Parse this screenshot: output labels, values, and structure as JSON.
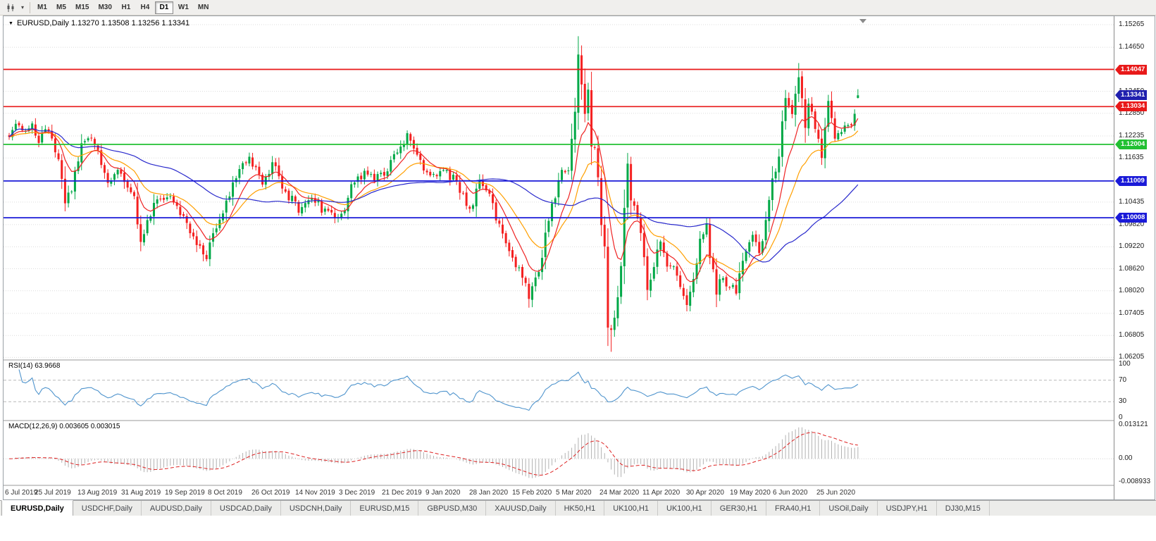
{
  "toolbar": {
    "timeframes": [
      {
        "label": "M1",
        "active": false
      },
      {
        "label": "M5",
        "active": false
      },
      {
        "label": "M15",
        "active": false
      },
      {
        "label": "M30",
        "active": false
      },
      {
        "label": "H1",
        "active": false
      },
      {
        "label": "H4",
        "active": false
      },
      {
        "label": "D1",
        "active": true
      },
      {
        "label": "W1",
        "active": false
      },
      {
        "label": "MN",
        "active": false
      }
    ]
  },
  "chart": {
    "header": "EURUSD,Daily 1.13270 1.13508 1.13256 1.13341",
    "rsi_label": "RSI(14) 63.9668",
    "macd_label": "MACD(12,26,9) 0.003605 0.003015"
  },
  "chart_data": {
    "type": "candlestick",
    "symbol": "EURUSD",
    "timeframe": "Daily",
    "ohlc": {
      "open": 1.1327,
      "high": 1.13508,
      "low": 1.13256,
      "close": 1.13341
    },
    "bars": 259,
    "price_ticks": [
      {
        "label": "1.15265",
        "p": 1.15265
      },
      {
        "label": "1.14650",
        "p": 1.1465
      },
      {
        "label": "1.13450",
        "p": 1.1345
      },
      {
        "label": "1.12850",
        "p": 1.1285
      },
      {
        "label": "1.12235",
        "p": 1.12235
      },
      {
        "label": "1.11635",
        "p": 1.11635
      },
      {
        "label": "1.10435",
        "p": 1.10435
      },
      {
        "label": "1.09820",
        "p": 1.0982
      },
      {
        "label": "1.09220",
        "p": 1.0922
      },
      {
        "label": "1.08620",
        "p": 1.0862
      },
      {
        "label": "1.08020",
        "p": 1.0802
      },
      {
        "label": "1.07405",
        "p": 1.07405
      },
      {
        "label": "1.06805",
        "p": 1.06805
      },
      {
        "label": "1.06205",
        "p": 1.06205
      }
    ],
    "hlines": [
      {
        "price": 1.14047,
        "label": "1.14047",
        "color": "#e81919"
      },
      {
        "price": 1.13034,
        "label": "1.13034",
        "color": "#e81919"
      },
      {
        "price": 1.12004,
        "label": "1.12004",
        "color": "#22c032"
      },
      {
        "price": 1.11009,
        "label": "1.11009",
        "color": "#1a1ad8"
      },
      {
        "price": 1.10008,
        "label": "1.10008",
        "color": "#1a1ad8"
      }
    ],
    "current_price": {
      "label": "1.13341",
      "value": 1.13341,
      "bg": "#1f1fae"
    },
    "x_labels": [
      "6 Jul 2019",
      "25 Jul 2019",
      "13 Aug 2019",
      "31 Aug 2019",
      "19 Sep 2019",
      "8 Oct 2019",
      "26 Oct 2019",
      "14 Nov 2019",
      "3 Dec 2019",
      "21 Dec 2019",
      "9 Jan 2020",
      "28 Jan 2020",
      "15 Feb 2020",
      "5 Mar 2020",
      "24 Mar 2020",
      "11 Apr 2020",
      "30 Apr 2020",
      "19 May 2020",
      "6 Jun 2020",
      "25 Jun 2020"
    ],
    "rsi": {
      "period": 14,
      "value": 63.9668,
      "axis": [
        {
          "label": "100",
          "v": 100
        },
        {
          "label": "70",
          "v": 70
        },
        {
          "label": "30",
          "v": 30
        },
        {
          "label": "0",
          "v": 0
        }
      ]
    },
    "macd": {
      "fast": 12,
      "slow": 26,
      "signal": 9,
      "value": 0.003605,
      "signal_value": 0.003015,
      "axis": [
        {
          "label": "0.013121",
          "v": 0.013121
        },
        {
          "label": "0.00",
          "v": 0
        },
        {
          "label": "-0.008933",
          "v": -0.008933
        }
      ]
    },
    "moving_averages": [
      {
        "type": "ema",
        "period": 21,
        "color": "#ff9f00"
      },
      {
        "type": "ema",
        "period": 9,
        "color": "#ee2222"
      },
      {
        "type": "sma",
        "period": 50,
        "color": "#2929cc"
      }
    ],
    "colors": {
      "bull": "#00a847",
      "bear": "#f42020",
      "rsi_line": "#4f94cd",
      "macd_hist": "#b2b2b2",
      "macd_signal": "#dd2222",
      "grid": "#dcdcdc"
    },
    "close_anchors": [
      [
        0,
        1.1235
      ],
      [
        2,
        1.1268
      ],
      [
        4,
        1.1228
      ],
      [
        6,
        1.1258
      ],
      [
        9,
        1.1215
      ],
      [
        12,
        1.1235
      ],
      [
        15,
        1.115
      ],
      [
        17,
        1.104
      ],
      [
        19,
        1.1085
      ],
      [
        22,
        1.12
      ],
      [
        26,
        1.121
      ],
      [
        30,
        1.1095
      ],
      [
        33,
        1.114
      ],
      [
        36,
        1.1085
      ],
      [
        38,
        1.106
      ],
      [
        40,
        1.093
      ],
      [
        44,
        1.1035
      ],
      [
        48,
        1.107
      ],
      [
        52,
        1.1015
      ],
      [
        56,
        1.0955
      ],
      [
        60,
        1.0895
      ],
      [
        63,
        1.0985
      ],
      [
        66,
        1.1035
      ],
      [
        70,
        1.114
      ],
      [
        73,
        1.116
      ],
      [
        77,
        1.109
      ],
      [
        80,
        1.115
      ],
      [
        84,
        1.1075
      ],
      [
        88,
        1.102
      ],
      [
        92,
        1.1065
      ],
      [
        96,
        1.1015
      ],
      [
        100,
        1.099
      ],
      [
        104,
        1.108
      ],
      [
        108,
        1.1125
      ],
      [
        112,
        1.111
      ],
      [
        115,
        1.113
      ],
      [
        118,
        1.118
      ],
      [
        121,
        1.122
      ],
      [
        124,
        1.1165
      ],
      [
        128,
        1.1115
      ],
      [
        132,
        1.1135
      ],
      [
        136,
        1.1095
      ],
      [
        140,
        1.1025
      ],
      [
        143,
        1.109
      ],
      [
        146,
        1.1055
      ],
      [
        150,
        1.095
      ],
      [
        154,
        1.0875
      ],
      [
        158,
        1.079
      ],
      [
        161,
        1.0855
      ],
      [
        164,
        1.1
      ],
      [
        166,
        1.1055
      ],
      [
        168,
        1.1135
      ],
      [
        170,
        1.114
      ],
      [
        172,
        1.129
      ],
      [
        173,
        1.145
      ],
      [
        174,
        1.136
      ],
      [
        175,
        1.128
      ],
      [
        176,
        1.134
      ],
      [
        177,
        1.1185
      ],
      [
        178,
        1.118
      ],
      [
        179,
        1.11
      ],
      [
        180,
        1.0995
      ],
      [
        181,
        1.0915
      ],
      [
        182,
        1.07
      ],
      [
        183,
        1.069
      ],
      [
        184,
        1.0727
      ],
      [
        185,
        1.0786
      ],
      [
        186,
        1.088
      ],
      [
        187,
        1.103
      ],
      [
        188,
        1.114
      ],
      [
        189,
        1.105
      ],
      [
        190,
        1.103
      ],
      [
        192,
        1.096
      ],
      [
        194,
        1.08
      ],
      [
        196,
        1.087
      ],
      [
        198,
        1.0935
      ],
      [
        200,
        1.087
      ],
      [
        202,
        1.0875
      ],
      [
        204,
        1.082
      ],
      [
        206,
        1.0775
      ],
      [
        208,
        1.083
      ],
      [
        210,
        1.095
      ],
      [
        212,
        1.098
      ],
      [
        213,
        1.0905
      ],
      [
        215,
        1.08
      ],
      [
        217,
        1.084
      ],
      [
        219,
        1.0815
      ],
      [
        221,
        1.08
      ],
      [
        224,
        1.0915
      ],
      [
        226,
        1.095
      ],
      [
        228,
        1.09
      ],
      [
        230,
        1.1
      ],
      [
        232,
        1.11
      ],
      [
        234,
        1.117
      ],
      [
        236,
        1.1337
      ],
      [
        238,
        1.1294
      ],
      [
        240,
        1.1373
      ],
      [
        242,
        1.1256
      ],
      [
        243,
        1.1323
      ],
      [
        245,
        1.1244
      ],
      [
        247,
        1.1177
      ],
      [
        249,
        1.1308
      ],
      [
        251,
        1.1218
      ],
      [
        253,
        1.1242
      ],
      [
        255,
        1.1251
      ],
      [
        257,
        1.128
      ],
      [
        258,
        1.1334
      ]
    ],
    "candle_overrides": [
      {
        "i": 173,
        "h": 1.1495
      },
      {
        "i": 183,
        "l": 1.0636
      },
      {
        "i": 240,
        "h": 1.1422
      },
      {
        "i": 258,
        "o": 1.1327,
        "h": 1.13508,
        "l": 1.13256,
        "c": 1.13341
      }
    ]
  },
  "tabs": [
    {
      "label": "EURUSD,Daily",
      "active": true
    },
    {
      "label": "USDCHF,Daily",
      "active": false
    },
    {
      "label": "AUDUSD,Daily",
      "active": false
    },
    {
      "label": "USDCAD,Daily",
      "active": false
    },
    {
      "label": "USDCNH,Daily",
      "active": false
    },
    {
      "label": "EURUSD,M15",
      "active": false
    },
    {
      "label": "GBPUSD,M30",
      "active": false
    },
    {
      "label": "XAUUSD,Daily",
      "active": false
    },
    {
      "label": "HK50,H1",
      "active": false
    },
    {
      "label": "UK100,H1",
      "active": false
    },
    {
      "label": "UK100,H1",
      "active": false
    },
    {
      "label": "GER30,H1",
      "active": false
    },
    {
      "label": "FRA40,H1",
      "active": false
    },
    {
      "label": "USOil,Daily",
      "active": false
    },
    {
      "label": "USDJPY,H1",
      "active": false
    },
    {
      "label": "DJ30,M15",
      "active": false
    }
  ]
}
